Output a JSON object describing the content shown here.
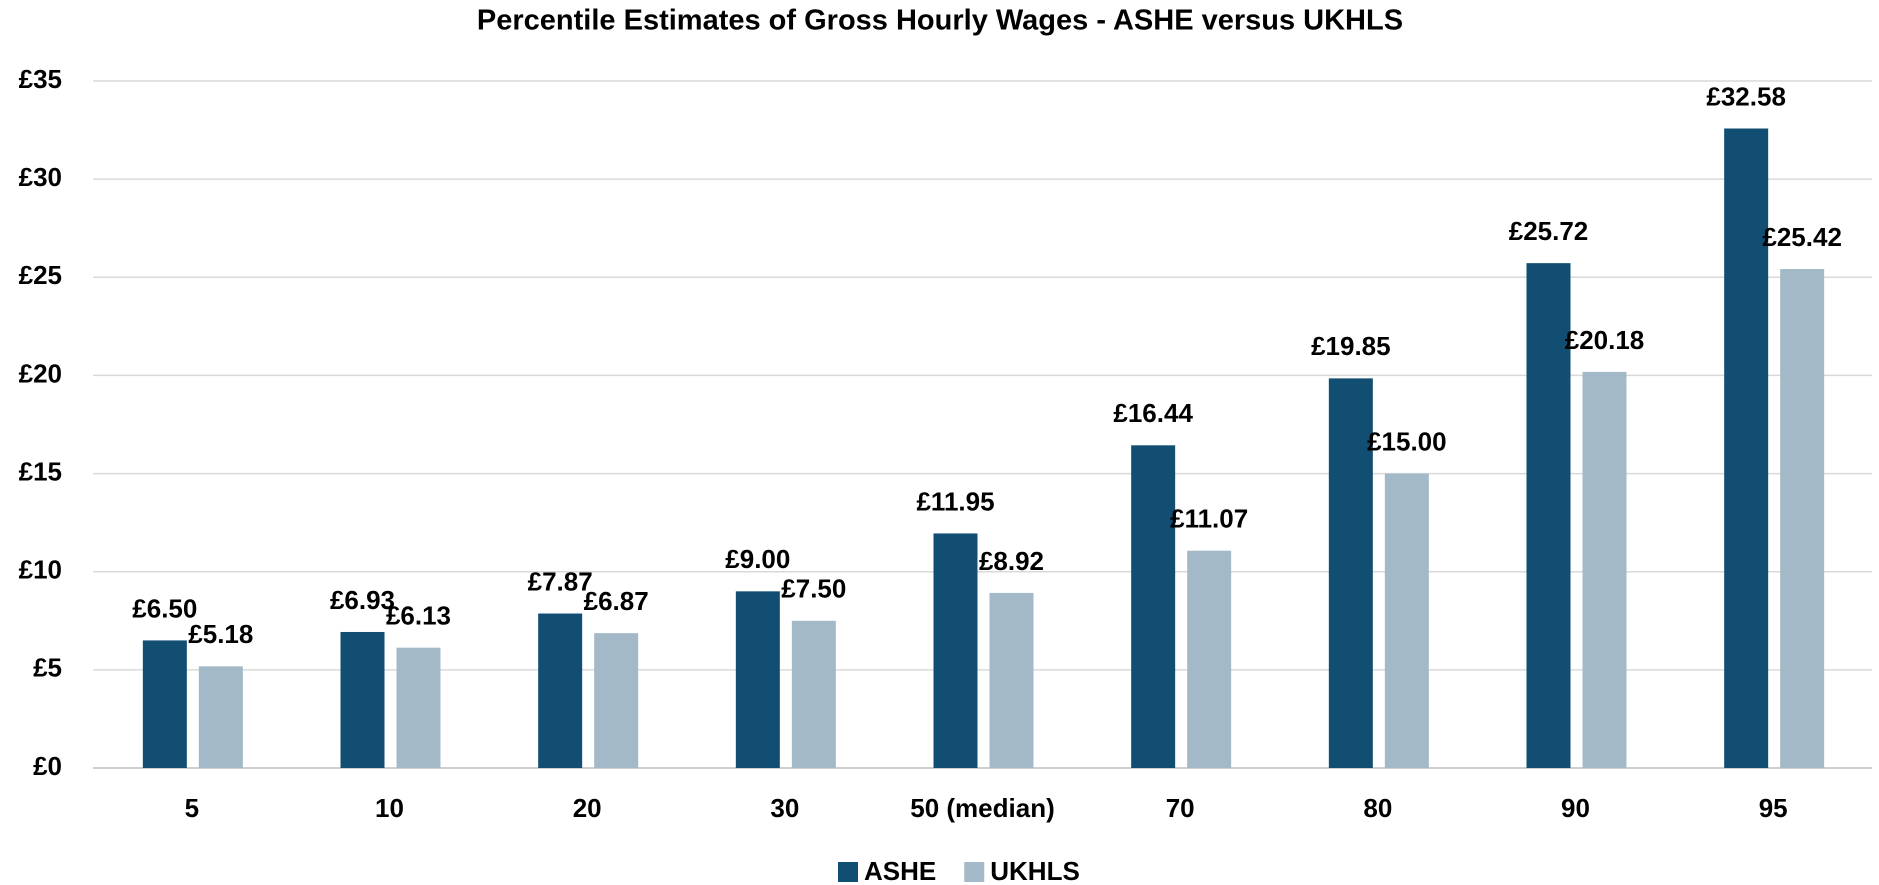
{
  "chart_data": {
    "type": "bar",
    "title": "Percentile Estimates of Gross Hourly Wages - ASHE versus UKHLS",
    "categories": [
      "5",
      "10",
      "20",
      "30",
      "50 (median)",
      "70",
      "80",
      "90",
      "95"
    ],
    "series": [
      {
        "name": "ASHE",
        "color": "#114e72",
        "values": [
          6.5,
          6.93,
          7.87,
          9.0,
          11.95,
          16.44,
          19.85,
          25.72,
          32.58
        ],
        "value_labels": [
          "£6.50",
          "£6.93",
          "£7.87",
          "£9.00",
          "£11.95",
          "£16.44",
          "£19.85",
          "£25.72",
          "£32.58"
        ]
      },
      {
        "name": "UKHLS",
        "color": "#a3b9c8",
        "values": [
          5.18,
          6.13,
          6.87,
          7.5,
          8.92,
          11.07,
          15.0,
          20.18,
          25.42
        ],
        "value_labels": [
          "£5.18",
          "£6.13",
          "£6.87",
          "£7.50",
          "£8.92",
          "£11.07",
          "£15.00",
          "£20.18",
          "£25.42"
        ]
      }
    ],
    "ylim": [
      0,
      35
    ],
    "yticks": [
      {
        "value": 0,
        "label": "£0"
      },
      {
        "value": 5,
        "label": "£5"
      },
      {
        "value": 10,
        "label": "£10"
      },
      {
        "value": 15,
        "label": "£15"
      },
      {
        "value": 20,
        "label": "£20"
      },
      {
        "value": 25,
        "label": "£25"
      },
      {
        "value": 30,
        "label": "£30"
      },
      {
        "value": 35,
        "label": "£35"
      }
    ],
    "grid": true,
    "legend": "bottom"
  }
}
